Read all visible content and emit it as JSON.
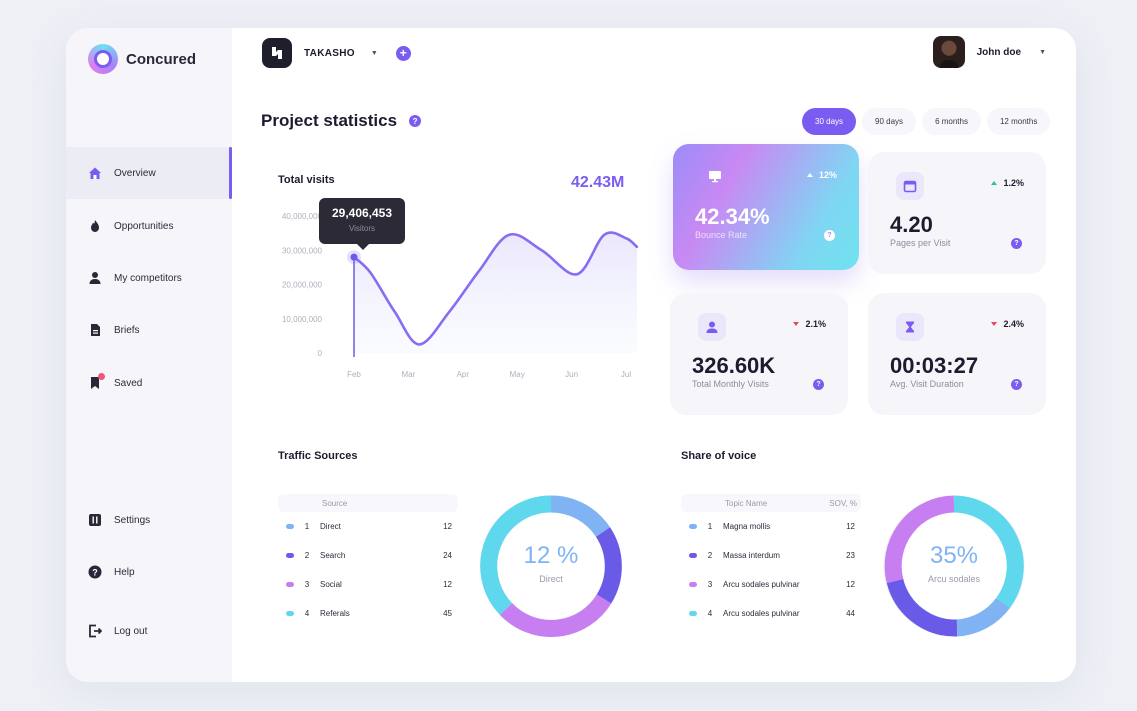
{
  "app": {
    "name": "Concured"
  },
  "sidebar": {
    "items": [
      {
        "label": "Overview"
      },
      {
        "label": "Opportunities"
      },
      {
        "label": "My competitors"
      },
      {
        "label": "Briefs"
      },
      {
        "label": "Saved"
      }
    ],
    "footer": [
      {
        "label": "Settings"
      },
      {
        "label": "Help"
      },
      {
        "label": "Log out"
      }
    ]
  },
  "header": {
    "workspace": "TAKASHO",
    "user_name": "John doe",
    "page_title": "Project statistics",
    "ranges": [
      "30 days",
      "90 days",
      "6 months",
      "12 months"
    ],
    "active_range": "30 days"
  },
  "visits": {
    "title": "Total visits",
    "total": "42.43M",
    "tooltip_value": "29,406,453",
    "tooltip_label": "Visitors"
  },
  "chart_data": {
    "type": "area",
    "title": "Total visits",
    "x": [
      "Feb",
      "Mar",
      "Apr",
      "May",
      "Jun",
      "Jul"
    ],
    "yticks": [
      "40,000,000",
      "30,000,000",
      "20,000,000",
      "10,000,000",
      "0"
    ],
    "ylim": [
      0,
      40000000
    ],
    "series": [
      {
        "points": [
          [
            0.0,
            28000000
          ],
          [
            0.3,
            23500000
          ],
          [
            0.75,
            12000000
          ],
          [
            1.2,
            2500000
          ],
          [
            1.75,
            12000000
          ],
          [
            2.3,
            24000000
          ],
          [
            2.85,
            34500000
          ],
          [
            3.45,
            30000000
          ],
          [
            4.1,
            23000000
          ],
          [
            4.6,
            34500000
          ],
          [
            5.0,
            33500000
          ],
          [
            5.2,
            31000000
          ]
        ]
      }
    ],
    "marker": {
      "x": 0.0,
      "y": 28000000
    },
    "grid": false
  },
  "stats": [
    {
      "value": "42.34%",
      "label": "Bounce Rate",
      "delta": "12%",
      "direction": "up",
      "icon": "monitor-icon"
    },
    {
      "value": "4.20",
      "label": "Pages per Visit",
      "delta": "1.2%",
      "direction": "up",
      "icon": "calendar-icon"
    },
    {
      "value": "326.60K",
      "label": "Total Monthly Visits",
      "delta": "2.1%",
      "direction": "down",
      "icon": "user-icon"
    },
    {
      "value": "00:03:27",
      "label": "Avg. Visit Duration",
      "delta": "2.4%",
      "direction": "down",
      "icon": "hourglass-icon"
    }
  ],
  "traffic": {
    "title": "Traffic Sources",
    "col_name": "Source",
    "rows": [
      {
        "num": "1",
        "name": "Direct",
        "value": "12",
        "color": "#7fb3f3"
      },
      {
        "num": "2",
        "name": "Search",
        "value": "24",
        "color": "#6a5ae8"
      },
      {
        "num": "3",
        "name": "Social",
        "value": "12",
        "color": "#c77ef0"
      },
      {
        "num": "4",
        "name": "Referals",
        "value": "45",
        "color": "#5fd8ee"
      }
    ],
    "donut_value": "12 %",
    "donut_label": "Direct"
  },
  "sov": {
    "title": "Share of voice",
    "col_name": "Topic Name",
    "col_value": "SOV, %",
    "rows": [
      {
        "num": "1",
        "name": "Magna mollis",
        "value": "12",
        "color": "#7fb3f3"
      },
      {
        "num": "2",
        "name": "Massa interdum",
        "value": "23",
        "color": "#6a5ae8"
      },
      {
        "num": "3",
        "name": "Arcu sodales pulvinar",
        "value": "12",
        "color": "#c77ef0"
      },
      {
        "num": "4",
        "name": "Arcu sodales pulvinar",
        "value": "44",
        "color": "#5fd8ee"
      }
    ],
    "donut_value": "35%",
    "donut_label": "Arcu sodales"
  }
}
